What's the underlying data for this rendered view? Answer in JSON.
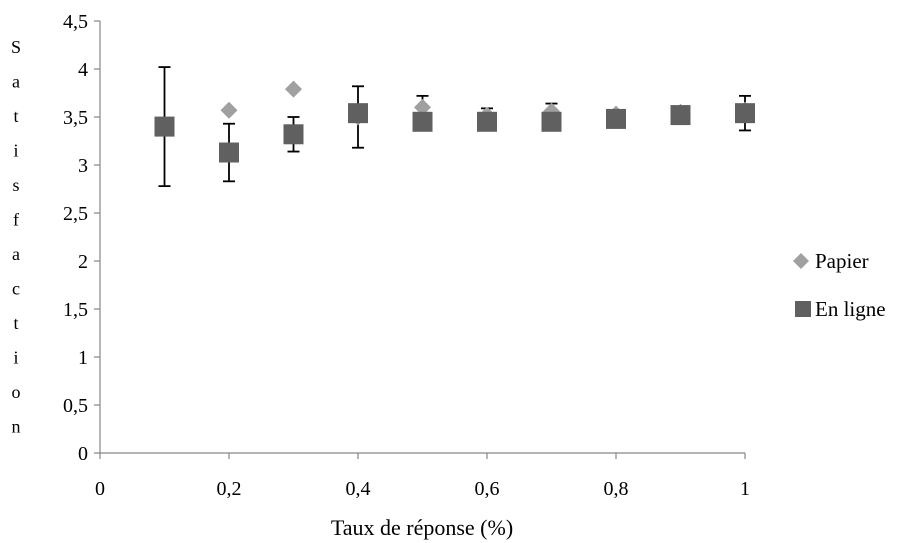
{
  "chart_data": {
    "type": "scatter",
    "xlabel": "Taux de réponse (%)",
    "ylabel": "Satisfaction",
    "xlim": [
      0,
      1
    ],
    "ylim": [
      0,
      4.5
    ],
    "x_ticks": [
      0,
      0.2,
      0.4,
      0.6,
      0.8,
      1
    ],
    "x_tick_labels": [
      "0",
      "0,2",
      "0,4",
      "0,6",
      "0,8",
      "1"
    ],
    "y_ticks": [
      0,
      0.5,
      1,
      1.5,
      2,
      2.5,
      3,
      3.5,
      4,
      4.5
    ],
    "y_tick_labels": [
      "0",
      "0,5",
      "1",
      "1,5",
      "2",
      "2,5",
      "3",
      "3,5",
      "4",
      "4,5"
    ],
    "grid": false,
    "legend_position": "right",
    "series": [
      {
        "name": "Papier",
        "marker": "diamond",
        "color": "#a0a0a0",
        "points": [
          {
            "x": 0.2,
            "y": 3.57
          },
          {
            "x": 0.3,
            "y": 3.79
          },
          {
            "x": 0.4,
            "y": 3.5
          },
          {
            "x": 0.5,
            "y": 3.6
          },
          {
            "x": 0.6,
            "y": 3.52
          },
          {
            "x": 0.7,
            "y": 3.56
          },
          {
            "x": 0.8,
            "y": 3.53
          },
          {
            "x": 0.9,
            "y": 3.55
          },
          {
            "x": 1.0,
            "y": 3.57
          }
        ]
      },
      {
        "name": "En ligne",
        "marker": "square",
        "color": "#606060",
        "points": [
          {
            "x": 0.1,
            "y": 3.4,
            "err_low": 2.78,
            "err_high": 4.02
          },
          {
            "x": 0.2,
            "y": 3.13,
            "err_low": 2.83,
            "err_high": 3.43
          },
          {
            "x": 0.3,
            "y": 3.32,
            "err_low": 3.14,
            "err_high": 3.5
          },
          {
            "x": 0.4,
            "y": 3.54,
            "err_low": 3.18,
            "err_high": 3.82
          },
          {
            "x": 0.5,
            "y": 3.45,
            "err_low": 3.45,
            "err_high": 3.72
          },
          {
            "x": 0.6,
            "y": 3.45,
            "err_low": 3.45,
            "err_high": 3.59
          },
          {
            "x": 0.7,
            "y": 3.45,
            "err_low": 3.45,
            "err_high": 3.64
          },
          {
            "x": 0.8,
            "y": 3.48,
            "err_low": 3.48,
            "err_high": 3.52
          },
          {
            "x": 0.9,
            "y": 3.52,
            "err_low": 3.44,
            "err_high": 3.58
          },
          {
            "x": 1.0,
            "y": 3.54,
            "err_low": 3.36,
            "err_high": 3.72
          }
        ]
      }
    ]
  }
}
